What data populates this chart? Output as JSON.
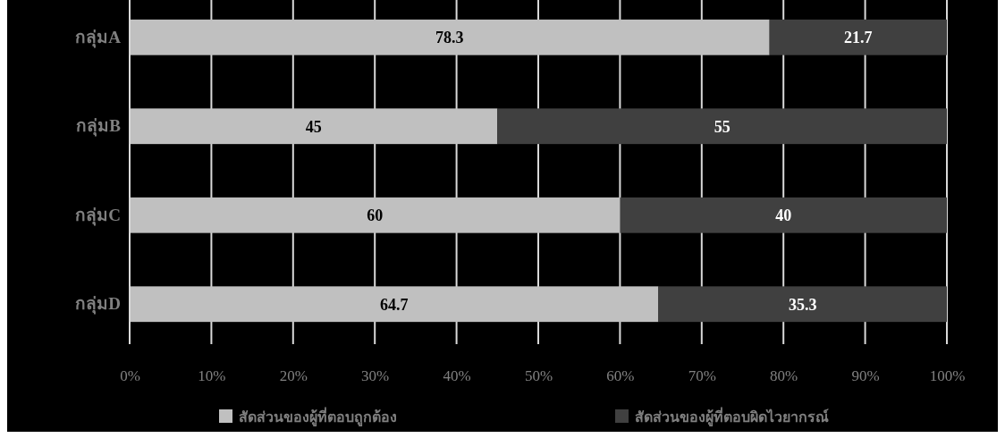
{
  "chart_data": {
    "type": "bar",
    "orientation": "horizontal",
    "stacked": true,
    "categories": [
      "กลุ่มA",
      "กลุ่มB",
      "กลุ่มC",
      "กลุ่มD"
    ],
    "series": [
      {
        "name": "สัดส่วนของผู้ที่ตอบถูกต้อง",
        "color": "#c0c0c0",
        "values": [
          78.3,
          45,
          60,
          64.7
        ]
      },
      {
        "name": "สัดส่วนของผู้ที่ตอบผิดไวยากรณ์",
        "color": "#404040",
        "values": [
          21.7,
          55,
          40,
          35.3
        ]
      }
    ],
    "xlim": [
      0,
      100
    ],
    "xticks": [
      {
        "value": 0,
        "label": "0%"
      },
      {
        "value": 10,
        "label": "10%"
      },
      {
        "value": 20,
        "label": "20%"
      },
      {
        "value": 30,
        "label": "30%"
      },
      {
        "value": 40,
        "label": "40%"
      },
      {
        "value": 50,
        "label": "50%"
      },
      {
        "value": 60,
        "label": "60%"
      },
      {
        "value": 70,
        "label": "70%"
      },
      {
        "value": 80,
        "label": "80%"
      },
      {
        "value": 90,
        "label": "90%"
      },
      {
        "value": 100,
        "label": "100%"
      }
    ],
    "grid": "x",
    "legend": "bottom",
    "data_labels": true
  }
}
